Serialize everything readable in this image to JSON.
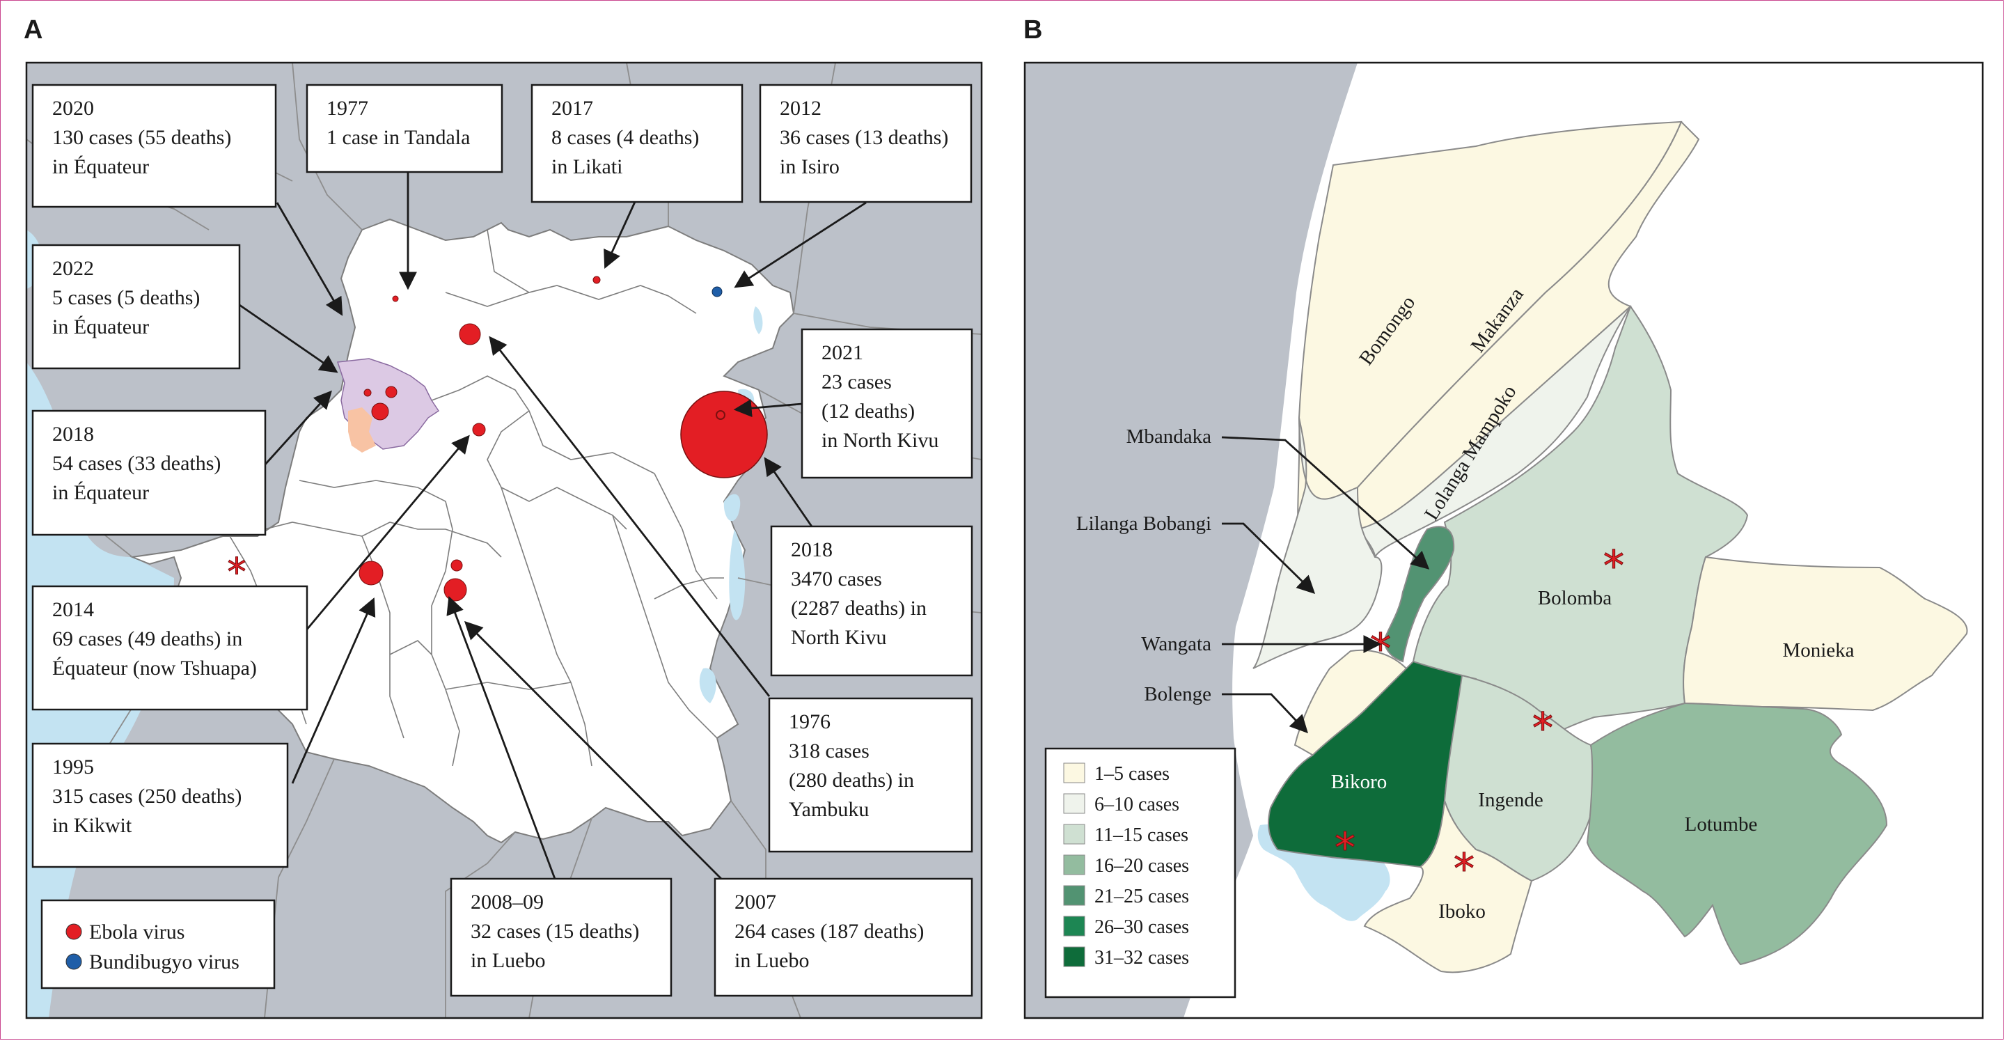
{
  "panels": {
    "a_label": "A",
    "b_label": "B"
  },
  "colors": {
    "land_other": "#bcc1c9",
    "water": "#c3e3f2",
    "drc": "#ffffff",
    "ebola": "#e31e24",
    "bundibugyo": "#1f5ea8",
    "equateur_purple": "#dcc9e4",
    "equateur_peach": "#f8c3a4",
    "case_1_5": "#fcf8e2",
    "case_6_10": "#eff3ec",
    "case_11_15": "#cfe0d2",
    "case_16_20": "#93bc9f",
    "case_21_25": "#529372",
    "case_26_30": "#1d8653",
    "case_31_32": "#0e6c3a"
  },
  "panel_a": {
    "callouts": [
      {
        "id": "c2020",
        "lines": [
          "2020",
          "130 cases (55 deaths)",
          "in Équateur"
        ]
      },
      {
        "id": "c1977",
        "lines": [
          "1977",
          "1 case in Tandala"
        ]
      },
      {
        "id": "c2017",
        "lines": [
          "2017",
          "8 cases (4 deaths)",
          "in Likati"
        ]
      },
      {
        "id": "c2012",
        "lines": [
          "2012",
          "36 cases (13 deaths)",
          "in Isiro"
        ]
      },
      {
        "id": "c2022",
        "lines": [
          "2022",
          "5 cases (5 deaths)",
          "in Équateur"
        ]
      },
      {
        "id": "c2021",
        "lines": [
          "2021",
          "23 cases",
          "(12 deaths)",
          "in North Kivu"
        ]
      },
      {
        "id": "c2018e",
        "lines": [
          "2018",
          "54 cases (33 deaths)",
          "in Équateur"
        ]
      },
      {
        "id": "c2018n",
        "lines": [
          "2018",
          "3470 cases",
          "(2287 deaths) in",
          "North Kivu"
        ]
      },
      {
        "id": "c2014",
        "lines": [
          "2014",
          "69 cases (49 deaths) in",
          "Équateur (now Tshuapa)"
        ]
      },
      {
        "id": "c1976",
        "lines": [
          "1976",
          "318 cases",
          "(280 deaths) in",
          "Yambuku"
        ]
      },
      {
        "id": "c1995",
        "lines": [
          "1995",
          "315 cases (250 deaths)",
          "in Kikwit"
        ]
      },
      {
        "id": "c2008",
        "lines": [
          "2008–09",
          "32 cases (15 deaths)",
          "in Luebo"
        ]
      },
      {
        "id": "c2007",
        "lines": [
          "2007",
          "264 cases (187 deaths)",
          "in Luebo"
        ]
      }
    ],
    "legend": [
      {
        "label": "Ebola virus",
        "color": "#e31e24"
      },
      {
        "label": "Bundibugyo virus",
        "color": "#1f5ea8"
      }
    ]
  },
  "panel_b": {
    "regions": [
      {
        "name": "Bomongo",
        "category": "1–5 cases"
      },
      {
        "name": "Makanza",
        "category": "1–5 cases"
      },
      {
        "name": "Lolanga Mampoko",
        "category": "6–10 cases"
      },
      {
        "name": "Bolomba",
        "category": "11–15 cases",
        "outbreak": true
      },
      {
        "name": "Monieka",
        "category": "1–5 cases"
      },
      {
        "name": "Bikoro",
        "category": "31–32 cases",
        "outbreak": true
      },
      {
        "name": "Ingende",
        "category": "11–15 cases",
        "outbreak": true
      },
      {
        "name": "Lotumbe",
        "category": "16–20 cases"
      },
      {
        "name": "Iboko",
        "category": "1–5 cases",
        "outbreak": true
      }
    ],
    "pointer_labels": [
      "Mbandaka",
      "Lilanga Bobangi",
      "Wangata",
      "Bolenge"
    ],
    "legend": [
      {
        "label": "1–5 cases",
        "color": "#fcf8e2"
      },
      {
        "label": "6–10 cases",
        "color": "#eff3ec"
      },
      {
        "label": "11–15 cases",
        "color": "#cfe0d2"
      },
      {
        "label": "16–20 cases",
        "color": "#93bc9f"
      },
      {
        "label": "21–25 cases",
        "color": "#529372"
      },
      {
        "label": "26–30 cases",
        "color": "#1d8653"
      },
      {
        "label": "31–32 cases",
        "color": "#0e6c3a"
      }
    ]
  }
}
